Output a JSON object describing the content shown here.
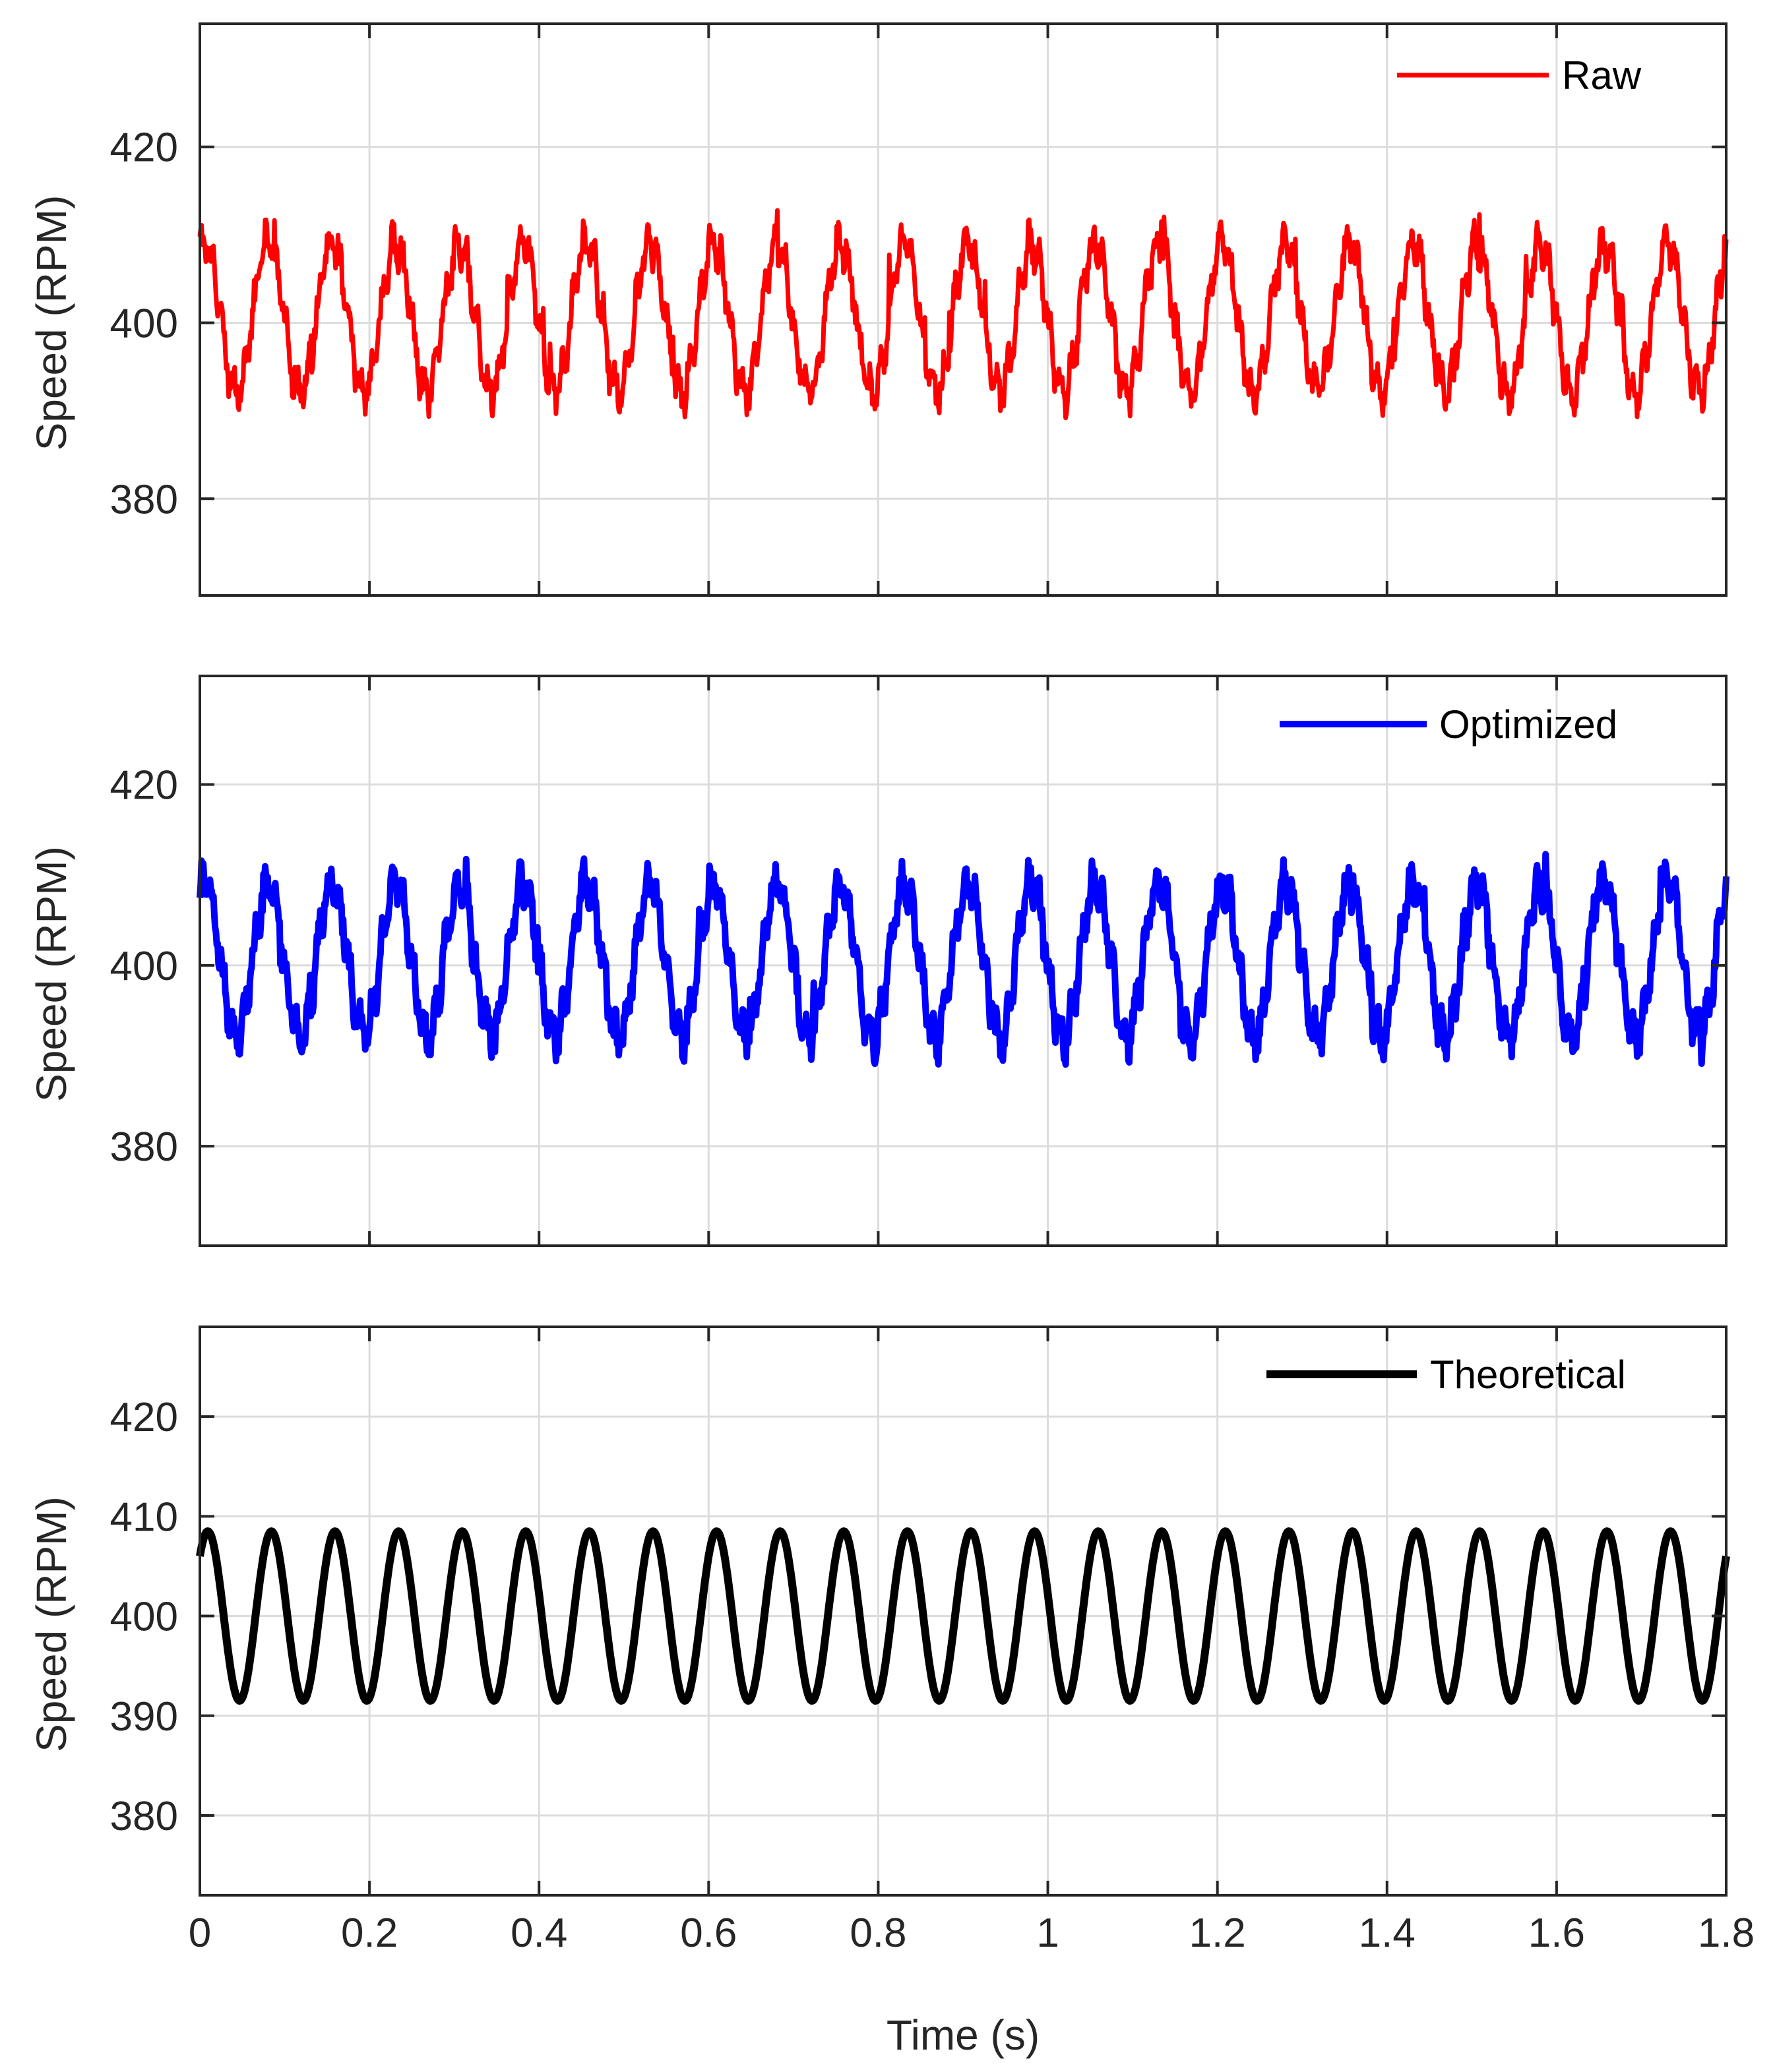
{
  "xlabel": "Time (s)",
  "chart_data": [
    {
      "type": "line",
      "title": "",
      "xlabel": "",
      "ylabel": "Speed (RPM)",
      "xlim": [
        0,
        1.8
      ],
      "ylim": [
        369,
        434
      ],
      "xticks": [
        0,
        0.2,
        0.4,
        0.6,
        0.8,
        1,
        1.2,
        1.4,
        1.6,
        1.8
      ],
      "xtick_labels": [],
      "yticks": [
        380,
        400,
        420
      ],
      "ytick_labels": [
        "380",
        "400",
        "420"
      ],
      "grid": true,
      "legend": "top-right",
      "series": [
        {
          "name": "Raw",
          "color": "#ff0000",
          "description_values": {
            "mean": 400.5,
            "amplitude": 8.5,
            "period_s": 0.075,
            "min": 388,
            "max": 414.5
          },
          "x": [
            0,
            0.0375,
            0.075,
            0.1125,
            0.15,
            0.1875,
            0.225,
            0.2625,
            0.3,
            0.3375,
            0.375,
            0.4125,
            0.45,
            0.4875,
            0.525,
            0.5625,
            0.6,
            0.6375,
            0.675,
            0.7125,
            0.75,
            0.7875,
            0.825,
            0.8625,
            0.9,
            0.9375,
            0.975,
            1.0125,
            1.05,
            1.0875,
            1.125,
            1.1625,
            1.2,
            1.2375,
            1.275,
            1.3125,
            1.35,
            1.3875,
            1.425,
            1.4625,
            1.5,
            1.5375,
            1.575,
            1.6125,
            1.65,
            1.6875,
            1.725,
            1.7625,
            1.8
          ],
          "y": [
            408,
            392,
            409,
            392,
            409,
            392,
            409,
            392,
            409,
            392,
            409,
            392,
            409,
            392,
            409,
            392,
            409,
            392,
            409,
            392,
            409,
            392,
            409,
            392,
            409,
            392,
            409,
            392,
            409,
            392,
            409,
            392,
            409,
            392,
            409,
            392,
            409,
            392,
            409,
            392,
            409,
            392,
            409,
            392,
            409,
            392,
            409,
            392,
            407
          ]
        }
      ]
    },
    {
      "type": "line",
      "title": "",
      "xlabel": "",
      "ylabel": "Speed (RPM)",
      "xlim": [
        0,
        1.8
      ],
      "ylim": [
        369,
        432
      ],
      "xticks": [
        0,
        0.2,
        0.4,
        0.6,
        0.8,
        1,
        1.2,
        1.4,
        1.6,
        1.8
      ],
      "xtick_labels": [],
      "yticks": [
        380,
        400,
        420
      ],
      "ytick_labels": [
        "380",
        "400",
        "420"
      ],
      "grid": true,
      "legend": "top-right",
      "series": [
        {
          "name": "Optimized",
          "color": "#0000ff",
          "description_values": {
            "mean": 400.5,
            "amplitude": 8.5,
            "period_s": 0.075,
            "min": 390,
            "max": 413
          },
          "x": [
            0,
            0.0375,
            0.075,
            0.1125,
            0.15,
            0.1875,
            0.225,
            0.2625,
            0.3,
            0.3375,
            0.375,
            0.4125,
            0.45,
            0.4875,
            0.525,
            0.5625,
            0.6,
            0.6375,
            0.675,
            0.7125,
            0.75,
            0.7875,
            0.825,
            0.8625,
            0.9,
            0.9375,
            0.975,
            1.0125,
            1.05,
            1.0875,
            1.125,
            1.1625,
            1.2,
            1.2375,
            1.275,
            1.3125,
            1.35,
            1.3875,
            1.425,
            1.4625,
            1.5,
            1.5375,
            1.575,
            1.6125,
            1.65,
            1.6875,
            1.725,
            1.7625,
            1.8
          ],
          "y": [
            408,
            392,
            409,
            392,
            409,
            392,
            409,
            392,
            409,
            392,
            409,
            392,
            409,
            392,
            409,
            392,
            409,
            392,
            409,
            392,
            409,
            392,
            409,
            392,
            409,
            392,
            409,
            392,
            409,
            392,
            409,
            392,
            409,
            392,
            409,
            392,
            409,
            392,
            409,
            392,
            409,
            392,
            409,
            392,
            409,
            392,
            409,
            392,
            408
          ]
        }
      ]
    },
    {
      "type": "line",
      "title": "",
      "xlabel": "Time (s)",
      "ylabel": "Speed (RPM)",
      "xlim": [
        0,
        1.8
      ],
      "ylim": [
        372,
        429
      ],
      "xticks": [
        0,
        0.2,
        0.4,
        0.6,
        0.8,
        1,
        1.2,
        1.4,
        1.6,
        1.8
      ],
      "xtick_labels": [
        "0",
        "0.2",
        "0.4",
        "0.6",
        "0.8",
        "1",
        "1.2",
        "1.4",
        "1.6",
        "1.8"
      ],
      "yticks": [
        380,
        390,
        400,
        410,
        420
      ],
      "ytick_labels": [
        "380",
        "390",
        "400",
        "410",
        "420"
      ],
      "grid": true,
      "legend": "top-right",
      "series": [
        {
          "name": "Theoretical",
          "color": "#000000",
          "function": {
            "mean": 400,
            "amplitude": 8.5,
            "period_s": 0.075,
            "y_at_0": 406
          },
          "x": [
            0,
            0.0375,
            0.075,
            0.1125,
            0.15,
            0.1875,
            0.225,
            0.2625,
            0.3,
            0.3375,
            0.375,
            0.4125,
            0.45,
            0.4875,
            0.525,
            0.5625,
            0.6,
            0.6375,
            0.675,
            0.7125,
            0.75,
            0.7875,
            0.825,
            0.8625,
            0.9,
            0.9375,
            0.975,
            1.0125,
            1.05,
            1.0875,
            1.125,
            1.1625,
            1.2,
            1.2375,
            1.275,
            1.3125,
            1.35,
            1.3875,
            1.425,
            1.4625,
            1.5,
            1.5375,
            1.575,
            1.6125,
            1.65,
            1.6875,
            1.725,
            1.7625,
            1.8
          ],
          "y": [
            406,
            391.5,
            408.5,
            391.5,
            408.5,
            391.5,
            408.5,
            391.5,
            408.5,
            391.5,
            408.5,
            391.5,
            408.5,
            391.5,
            408.5,
            391.5,
            408.5,
            391.5,
            408.5,
            391.5,
            408.5,
            391.5,
            408.5,
            391.5,
            408.5,
            391.5,
            408.5,
            391.5,
            408.5,
            391.5,
            408.5,
            391.5,
            408.5,
            391.5,
            408.5,
            391.5,
            408.5,
            391.5,
            408.5,
            391.5,
            408.5,
            391.5,
            408.5,
            391.5,
            408.5,
            391.5,
            408.5,
            391.5,
            408
          ]
        }
      ]
    }
  ]
}
